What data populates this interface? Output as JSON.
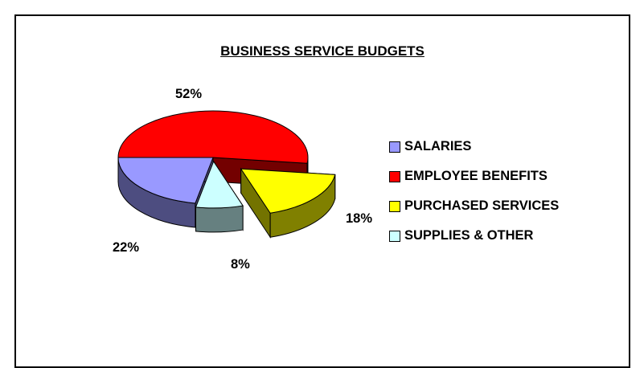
{
  "chart_data": {
    "type": "pie",
    "title": "BUSINESS SERVICE BUDGETS",
    "legend_position": "right",
    "categories": [
      "SALARIES",
      "EMPLOYEE BENEFITS",
      "PURCHASED SERVICES",
      "SUPPLIES & OTHER"
    ],
    "values": [
      22,
      52,
      18,
      8
    ],
    "labels": [
      "22%",
      "52%",
      "18%",
      "8%"
    ],
    "colors": [
      "#9999FF",
      "#FF0000",
      "#FFFF00",
      "#CCFFFF"
    ]
  }
}
